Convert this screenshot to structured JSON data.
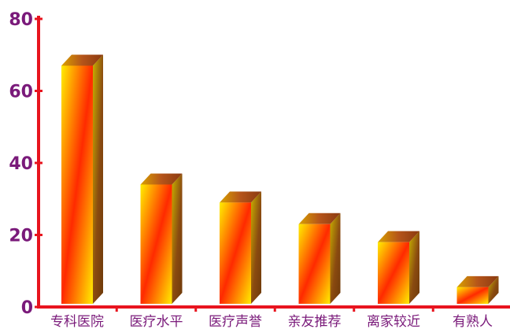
{
  "chart_data": {
    "type": "bar",
    "categories": [
      "专科医院",
      "医疗水平",
      "医疗声誉",
      "亲友推荐",
      "离家较近",
      "有熟人"
    ],
    "values": [
      67,
      34,
      29,
      23,
      18,
      5.5
    ],
    "yticks": [
      "0",
      "20",
      "40",
      "60",
      "80"
    ],
    "ylim": [
      0,
      80
    ],
    "grid": false,
    "legend": "none",
    "bar_style": "3d",
    "colors": {
      "axis": "#e8141e",
      "tick_text": "#7a1a7a",
      "bar_light": "#ffee00",
      "bar_mid": "#ff7a00",
      "bar_red": "#ff2a00",
      "bar_side": "#8a4a10",
      "bar_top": "#b5541a"
    }
  }
}
